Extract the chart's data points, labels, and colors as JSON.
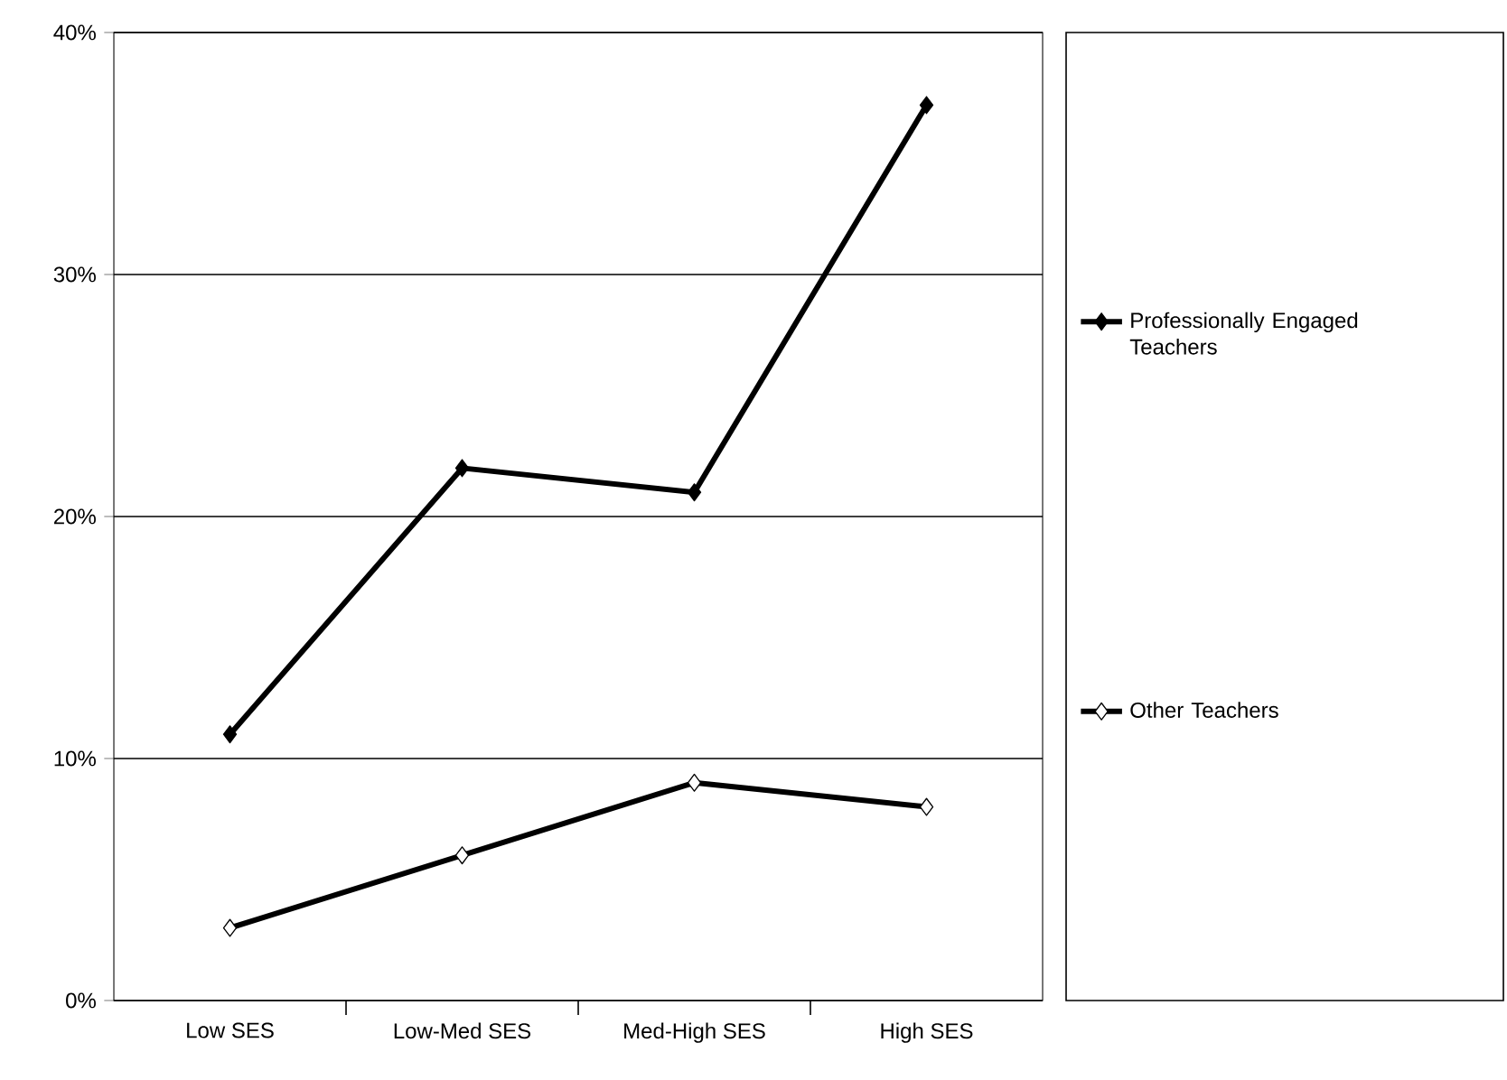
{
  "chart_data": {
    "type": "line",
    "categories": [
      "Low SES",
      "Low-Med SES",
      "Med-High SES",
      "High SES"
    ],
    "series": [
      {
        "name": "Professionally Engaged Teachers",
        "color": "#000000",
        "values": [
          11,
          22,
          21,
          37
        ]
      },
      {
        "name": "Other Teachers",
        "color": "#000000",
        "values": [
          3,
          6,
          9,
          8
        ]
      }
    ],
    "ylim": [
      0,
      40
    ],
    "yticks": [
      {
        "value": 0,
        "label": "0%"
      },
      {
        "value": 10,
        "label": "10%"
      },
      {
        "value": 20,
        "label": "20%"
      },
      {
        "value": 30,
        "label": "30%"
      },
      {
        "value": 40,
        "label": "40%"
      }
    ],
    "grid": "y",
    "legend": "right",
    "marker": "diamond",
    "line_style": "solid"
  }
}
